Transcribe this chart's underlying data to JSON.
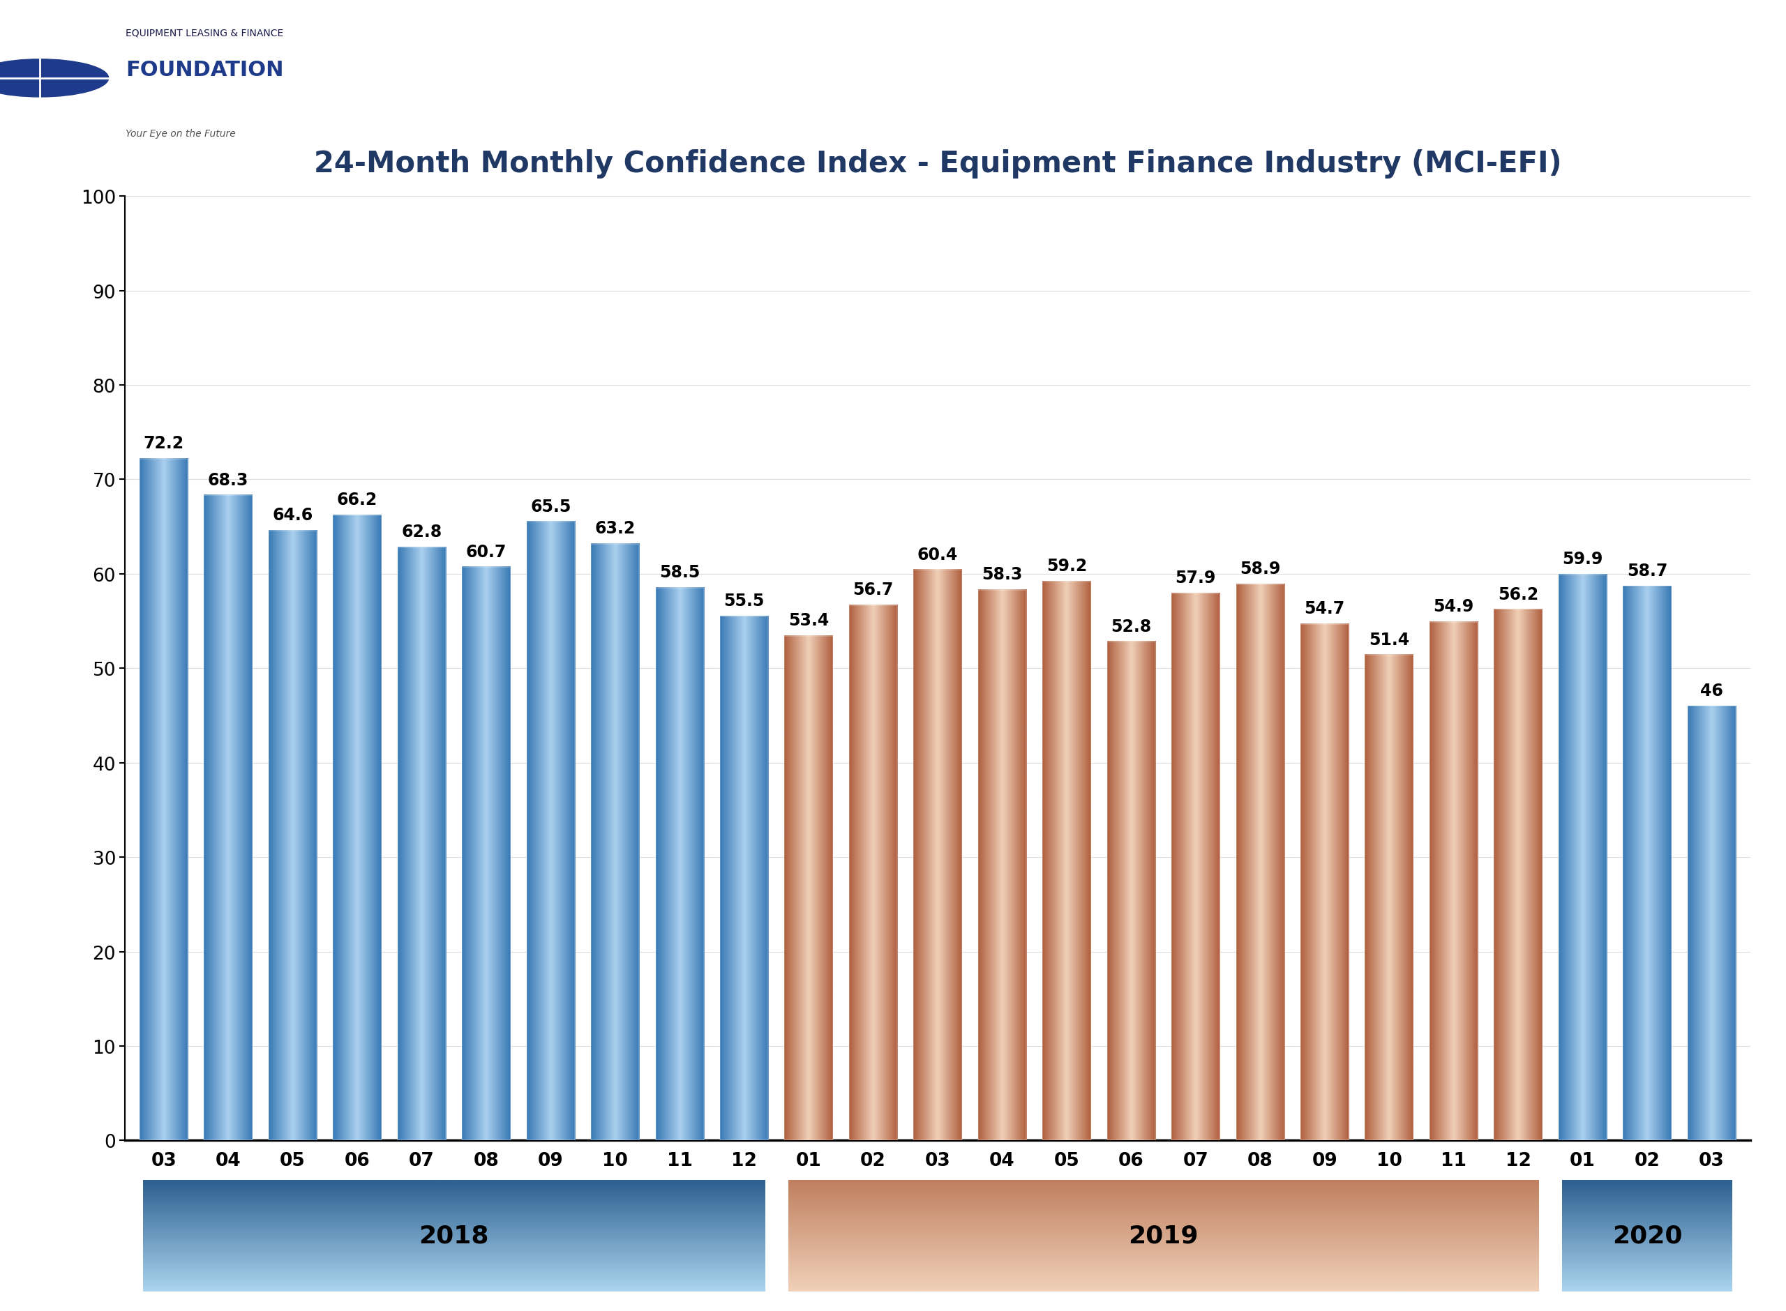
{
  "title": "24-Month Monthly Confidence Index - Equipment Finance Industry (MCI-EFI)",
  "categories": [
    "03",
    "04",
    "05",
    "06",
    "07",
    "08",
    "09",
    "10",
    "11",
    "12",
    "01",
    "02",
    "03",
    "04",
    "05",
    "06",
    "07",
    "08",
    "09",
    "10",
    "11",
    "12",
    "01",
    "02",
    "03"
  ],
  "values": [
    72.2,
    68.3,
    64.6,
    66.2,
    62.8,
    60.7,
    65.5,
    63.2,
    58.5,
    55.5,
    53.4,
    56.7,
    60.4,
    58.3,
    59.2,
    52.8,
    57.9,
    58.9,
    54.7,
    51.4,
    54.9,
    56.2,
    59.9,
    58.7,
    46.0
  ],
  "year_info": [
    {
      "label": "2018",
      "start": 0,
      "end": 9,
      "bar_color_dark": "#3a7ab5",
      "bar_color_light": "#aad0ef",
      "box_color_top": "#2e6090",
      "box_color_bottom": "#aad4ee"
    },
    {
      "label": "2019",
      "start": 10,
      "end": 21,
      "bar_color_dark": "#b06040",
      "bar_color_light": "#f0d0b8",
      "box_color_top": "#c08060",
      "box_color_bottom": "#f0d0b8"
    },
    {
      "label": "2020",
      "start": 22,
      "end": 24,
      "bar_color_dark": "#3a7ab5",
      "bar_color_light": "#aad0ef",
      "box_color_top": "#2e6090",
      "box_color_bottom": "#aad4ee"
    }
  ],
  "ylim": [
    0,
    100
  ],
  "yticks": [
    0,
    10,
    20,
    30,
    40,
    50,
    60,
    70,
    80,
    90,
    100
  ],
  "title_color": "#1f3864",
  "title_fontsize": 30,
  "value_fontsize": 17,
  "axis_tick_fontsize": 19,
  "year_label_fontsize": 26,
  "background_color": "#ffffff",
  "logo_text_top": "EQUIPMENT LEASING & FINANCE",
  "logo_text_main": "FOUNDATION",
  "logo_text_sub": "Your Eye on the Future"
}
